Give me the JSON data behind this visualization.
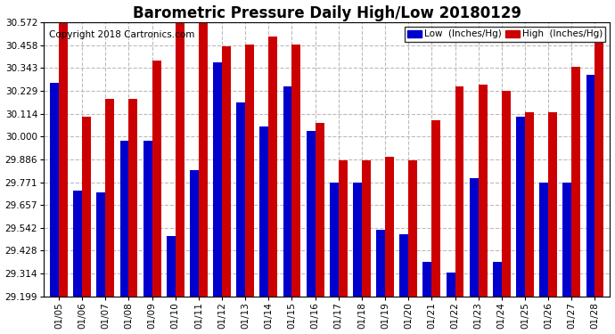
{
  "title": "Barometric Pressure Daily High/Low 20180129",
  "copyright": "Copyright 2018 Cartronics.com",
  "dates": [
    "01/05",
    "01/06",
    "01/07",
    "01/08",
    "01/09",
    "01/10",
    "01/11",
    "01/12",
    "01/13",
    "01/14",
    "01/15",
    "01/16",
    "01/17",
    "01/18",
    "01/19",
    "01/20",
    "01/21",
    "01/22",
    "01/23",
    "01/24",
    "01/25",
    "01/26",
    "01/27",
    "01/28"
  ],
  "low_values": [
    30.27,
    29.73,
    29.72,
    29.98,
    29.98,
    29.5,
    29.83,
    30.37,
    30.17,
    30.05,
    30.25,
    30.03,
    29.77,
    29.77,
    29.53,
    29.51,
    29.37,
    29.32,
    29.79,
    29.37,
    30.1,
    29.77,
    29.77,
    30.31
  ],
  "high_values": [
    30.57,
    30.1,
    30.19,
    30.19,
    30.38,
    30.57,
    30.57,
    30.45,
    30.46,
    30.5,
    30.46,
    30.07,
    29.88,
    29.88,
    29.9,
    29.88,
    30.08,
    30.25,
    30.26,
    30.23,
    30.12,
    30.12,
    30.35,
    30.47
  ],
  "low_color": "#0000cc",
  "high_color": "#cc0000",
  "bg_color": "#ffffff",
  "plot_bg_color": "#ffffff",
  "grid_color": "#bbbbbb",
  "ylim_min": 29.199,
  "ylim_max": 30.572,
  "yticks": [
    29.199,
    29.314,
    29.428,
    29.542,
    29.657,
    29.771,
    29.886,
    30.0,
    30.114,
    30.229,
    30.343,
    30.458,
    30.572
  ],
  "title_fontsize": 12,
  "copyright_fontsize": 7.5,
  "legend_low_label": "Low  (Inches/Hg)",
  "legend_high_label": "High  (Inches/Hg)"
}
